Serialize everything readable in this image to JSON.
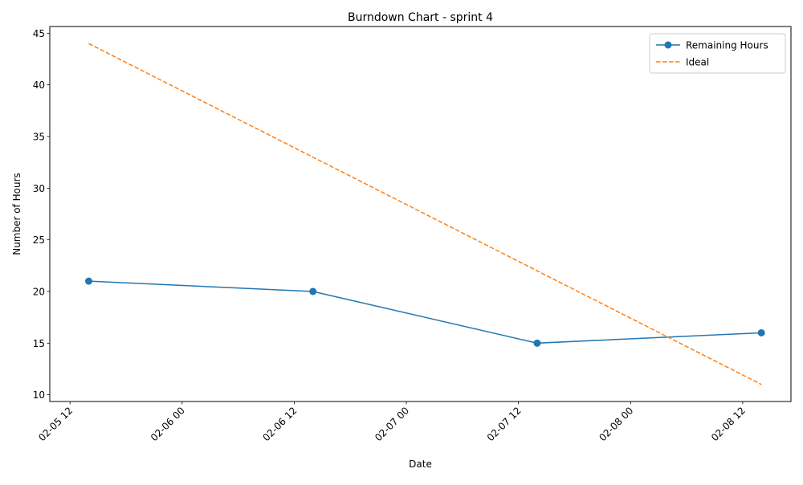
{
  "chart_data": {
    "type": "line",
    "title": "Burndown Chart - sprint 4",
    "xlabel": "Date",
    "ylabel": "Number of Hours",
    "xlim": [
      "2025-02-05 09:50",
      "2025-02-08 17:10"
    ],
    "ylim": [
      9.35,
      45.65
    ],
    "grid": false,
    "legend_position": "top-right",
    "x_ticks": [
      {
        "value": "2025-02-05 12:00",
        "label": "02-05 12"
      },
      {
        "value": "2025-02-06 00:00",
        "label": "02-06 00"
      },
      {
        "value": "2025-02-06 12:00",
        "label": "02-06 12"
      },
      {
        "value": "2025-02-07 00:00",
        "label": "02-07 00"
      },
      {
        "value": "2025-02-07 12:00",
        "label": "02-07 12"
      },
      {
        "value": "2025-02-08 00:00",
        "label": "02-08 00"
      },
      {
        "value": "2025-02-08 12:00",
        "label": "02-08 12"
      }
    ],
    "y_ticks": [
      10,
      15,
      20,
      25,
      30,
      35,
      40,
      45
    ],
    "series": [
      {
        "name": "Remaining Hours",
        "color": "#1f77b4",
        "style": "solid",
        "marker": "circle",
        "points": [
          {
            "x": "2025-02-05 14:00",
            "y": 21
          },
          {
            "x": "2025-02-06 14:00",
            "y": 20
          },
          {
            "x": "2025-02-07 14:00",
            "y": 15
          },
          {
            "x": "2025-02-08 14:00",
            "y": 16
          }
        ]
      },
      {
        "name": "Ideal",
        "color": "#ff7f0e",
        "style": "dashed",
        "marker": "none",
        "points": [
          {
            "x": "2025-02-05 14:00",
            "y": 44
          },
          {
            "x": "2025-02-08 14:00",
            "y": 11
          }
        ]
      }
    ]
  }
}
